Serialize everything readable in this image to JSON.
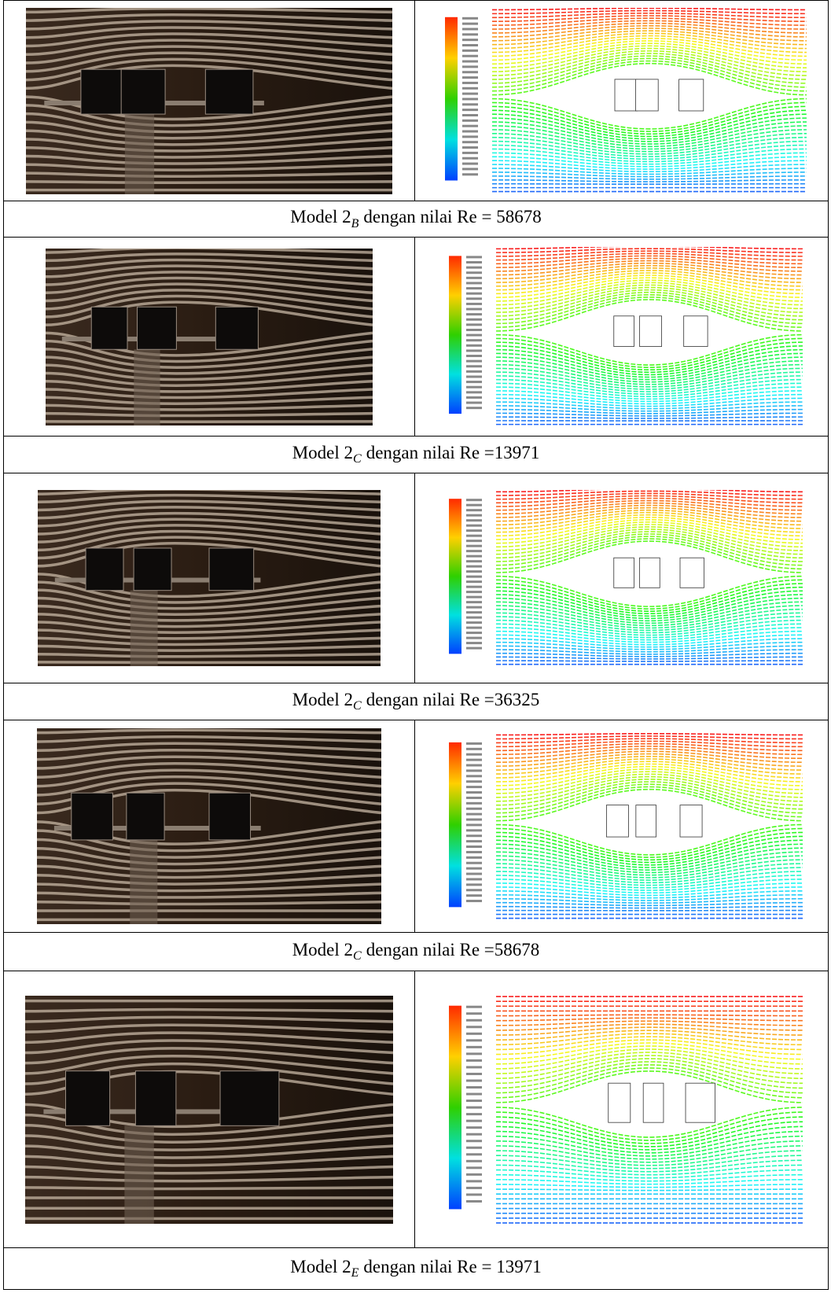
{
  "table": {
    "rows": [
      {
        "caption": {
          "prefix": "Model 2",
          "subscript": "B",
          "suffix": "dengan nilai Re = 58678"
        }
      },
      {
        "caption": {
          "prefix": "Model 2",
          "subscript": "C",
          "suffix": "dengan nilai Re =13971"
        }
      },
      {
        "caption": {
          "prefix": "Model 2",
          "subscript": "C",
          "suffix": "dengan nilai Re =36325"
        }
      },
      {
        "caption": {
          "prefix": "Model 2",
          "subscript": "C",
          "suffix": "dengan nilai Re =58678"
        }
      },
      {
        "caption": {
          "prefix": "Model 2",
          "subscript": "E",
          "suffix": "dengan nilai Re = 13971"
        }
      }
    ]
  }
}
